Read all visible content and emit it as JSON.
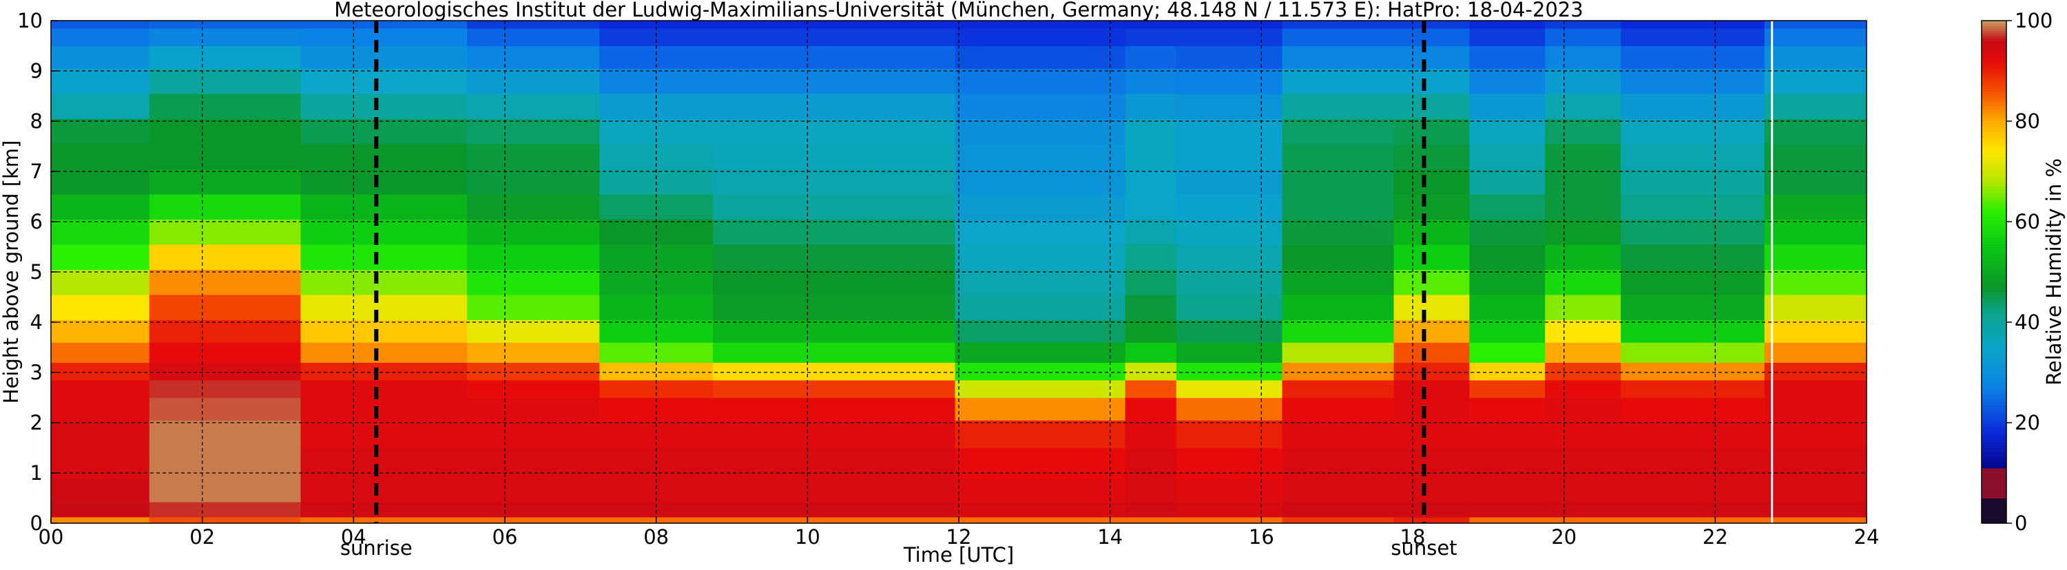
{
  "chart_data": {
    "type": "heatmap",
    "title": "Meteorologisches Institut der Ludwig-Maximilians-Universität (München, Germany; 48.148 N / 11.573 E):    HatPro: 18-04-2023",
    "xlabel": "Time [UTC]",
    "ylabel": "Height above ground [km]",
    "colorbar_label": "Relative Humidity in %",
    "xlim": [
      0,
      24
    ],
    "ylim": [
      0,
      10
    ],
    "clim": [
      0,
      100
    ],
    "x_ticks": [
      "00",
      "02",
      "04",
      "06",
      "08",
      "10",
      "12",
      "14",
      "16",
      "18",
      "20",
      "22",
      "24"
    ],
    "y_ticks": [
      "0",
      "1",
      "2",
      "3",
      "4",
      "5",
      "6",
      "7",
      "8",
      "9",
      "10"
    ],
    "colorbar_ticks": [
      "0",
      "20",
      "40",
      "60",
      "80",
      "100"
    ],
    "grid": true,
    "events": [
      {
        "label": "sunrise",
        "time": 4.3
      },
      {
        "label": "sunset",
        "time": 18.15
      }
    ],
    "data_gap_time": 22.75,
    "colormap": [
      [
        0,
        "#190a2e"
      ],
      [
        5,
        "#190a2e"
      ],
      [
        5.01,
        "#8c0f2d"
      ],
      [
        11,
        "#8c0f2d"
      ],
      [
        11.01,
        "#05058c"
      ],
      [
        18,
        "#0a28dc"
      ],
      [
        27,
        "#0a82e6"
      ],
      [
        35,
        "#0aa5c8"
      ],
      [
        42,
        "#0aa58c"
      ],
      [
        47,
        "#0a9628"
      ],
      [
        55,
        "#0ac814"
      ],
      [
        62,
        "#28f000"
      ],
      [
        68,
        "#b4e600"
      ],
      [
        74,
        "#ffe600"
      ],
      [
        80,
        "#ffaa00"
      ],
      [
        86,
        "#f55000"
      ],
      [
        92,
        "#e60a0a"
      ],
      [
        96,
        "#c80a14"
      ],
      [
        100,
        "#c8a060"
      ]
    ],
    "height_km": [
      0,
      0.25,
      0.6,
      1.2,
      1.8,
      2.3,
      2.7,
      3.0,
      3.4,
      3.8,
      4.3,
      4.8,
      5.3,
      5.8,
      6.3,
      6.8,
      7.3,
      7.8,
      8.3,
      8.8,
      9.3,
      9.7,
      10.0
    ],
    "profile_times_utc": [
      0,
      2.6,
      4,
      7,
      7.5,
      10,
      13.9,
      14.5,
      15.25,
      17.3,
      18.2,
      19.3,
      20.2,
      21.3,
      24
    ],
    "profiles_rh_percent": [
      [
        82,
        96,
        95,
        94,
        94,
        93,
        93,
        90,
        84,
        79,
        74,
        68,
        62,
        58,
        52,
        47,
        47,
        46,
        38,
        34,
        30,
        26,
        23
      ],
      [
        86,
        97,
        99,
        99,
        99,
        98,
        97,
        94,
        92,
        90,
        87,
        82,
        76,
        66,
        58,
        50,
        47,
        47,
        45,
        40,
        34,
        28,
        24
      ],
      [
        84,
        95,
        94,
        94,
        93,
        93,
        93,
        90,
        82,
        77,
        72,
        66,
        60,
        56,
        52,
        47,
        47,
        45,
        40,
        35,
        30,
        27,
        24
      ],
      [
        84,
        95,
        94,
        94,
        93,
        93,
        92,
        88,
        80,
        72,
        64,
        60,
        56,
        52,
        48,
        46,
        46,
        44,
        38,
        33,
        28,
        24,
        20
      ],
      [
        84,
        95,
        94,
        94,
        93,
        92,
        89,
        78,
        64,
        56,
        52,
        50,
        49,
        47,
        44,
        40,
        38,
        36,
        33,
        28,
        24,
        20,
        18
      ],
      [
        84,
        95,
        94,
        94,
        93,
        92,
        88,
        75,
        58,
        52,
        48,
        47,
        46,
        44,
        40,
        38,
        37,
        36,
        33,
        28,
        24,
        20,
        18
      ],
      [
        84,
        94,
        93,
        92,
        90,
        82,
        70,
        60,
        50,
        44,
        40,
        38,
        36,
        35,
        33,
        31,
        31,
        30,
        28,
        26,
        22,
        19,
        18
      ],
      [
        84,
        95,
        94,
        94,
        93,
        92,
        86,
        70,
        55,
        48,
        46,
        44,
        42,
        38,
        35,
        35,
        36,
        36,
        32,
        28,
        24,
        20,
        18
      ],
      [
        84,
        94,
        93,
        92,
        90,
        84,
        72,
        60,
        50,
        45,
        42,
        40,
        38,
        36,
        34,
        33,
        34,
        34,
        31,
        27,
        23,
        20,
        18
      ],
      [
        88,
        95,
        94,
        94,
        93,
        92,
        90,
        82,
        68,
        58,
        52,
        49,
        47,
        46,
        45,
        45,
        45,
        44,
        40,
        34,
        28,
        24,
        20
      ],
      [
        90,
        95,
        94,
        94,
        93,
        93,
        93,
        90,
        86,
        80,
        72,
        64,
        56,
        52,
        48,
        47,
        46,
        45,
        40,
        34,
        28,
        24,
        20
      ],
      [
        84,
        95,
        94,
        94,
        93,
        92,
        88,
        76,
        62,
        56,
        52,
        49,
        47,
        46,
        44,
        40,
        38,
        36,
        32,
        28,
        24,
        20,
        18
      ],
      [
        84,
        95,
        94,
        94,
        93,
        93,
        92,
        88,
        80,
        74,
        66,
        58,
        52,
        48,
        46,
        46,
        46,
        44,
        38,
        33,
        28,
        24,
        20
      ],
      [
        84,
        95,
        94,
        94,
        93,
        92,
        90,
        82,
        66,
        56,
        50,
        48,
        46,
        44,
        42,
        40,
        38,
        36,
        32,
        28,
        24,
        20,
        18
      ],
      [
        84,
        95,
        94,
        94,
        93,
        93,
        93,
        90,
        82,
        76,
        70,
        64,
        58,
        54,
        50,
        46,
        46,
        45,
        40,
        34,
        30,
        26,
        23
      ]
    ]
  }
}
